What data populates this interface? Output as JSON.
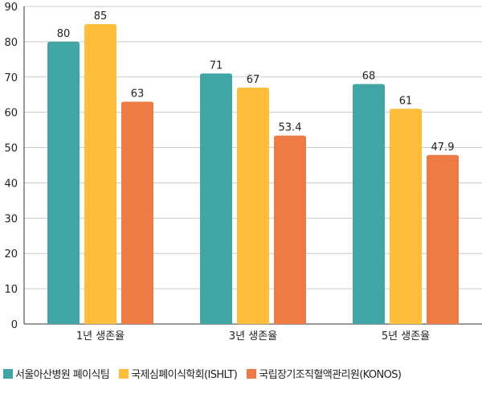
{
  "chart_data": {
    "type": "bar",
    "categories": [
      "1년 생존율",
      "3년 생존율",
      "5년 생존율"
    ],
    "series": [
      {
        "name": "서울아산병원 폐이식팀",
        "values": [
          80,
          71,
          68
        ],
        "color": "#42A5A5"
      },
      {
        "name": "국제심폐이식학회(ISHLT)",
        "values": [
          85,
          67,
          61
        ],
        "color": "#FEBD3B"
      },
      {
        "name": "국립장기조직혈액관리원(KONOS)",
        "values": [
          63,
          53.4,
          47.9
        ],
        "color": "#EE7B43"
      }
    ],
    "value_labels": [
      [
        "80",
        "71",
        "68"
      ],
      [
        "85",
        "67",
        "61"
      ],
      [
        "63",
        "53.4",
        "47.9"
      ]
    ],
    "ylim": [
      0,
      90
    ],
    "yticks": [
      0,
      10,
      20,
      30,
      40,
      50,
      60,
      70,
      80,
      90
    ],
    "grid": true,
    "legend": "bottom"
  }
}
